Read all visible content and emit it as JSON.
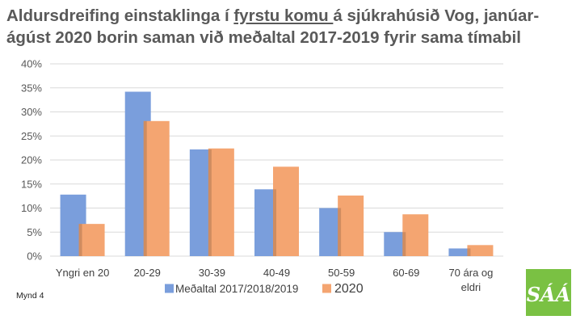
{
  "title": {
    "part1": "Aldursdreifing einstaklinga í ",
    "underlined": "fyrstu komu ",
    "part2": "á sjúkrahúsið Vog, janúar-ágúst 2020 borin saman við meðaltal 2017-2019 fyrir sama tímabil"
  },
  "figure_label": "Mynd 4",
  "logo": {
    "text": "SÁÁ",
    "color": "#7ac143"
  },
  "chart_data": {
    "type": "bar",
    "categories": [
      "Yngri en 20",
      "20-29",
      "30-39",
      "40-49",
      "50-59",
      "60-69",
      "70 ára og eldri"
    ],
    "category_lines": [
      [
        "Yngri en 20"
      ],
      [
        "20-29"
      ],
      [
        "30-39"
      ],
      [
        "40-49"
      ],
      [
        "50-59"
      ],
      [
        "60-69"
      ],
      [
        "70 ára og",
        "eldri"
      ]
    ],
    "series": [
      {
        "name": "Meðaltal 2017/2018/2019",
        "color": "#7a9edc",
        "values": [
          12.8,
          34.2,
          22.2,
          13.9,
          10.0,
          5.0,
          1.6
        ]
      },
      {
        "name": "2020",
        "color": "#f4a571",
        "values": [
          6.7,
          28.1,
          22.4,
          18.6,
          12.6,
          8.7,
          2.3
        ]
      }
    ],
    "ylim": [
      0,
      40
    ],
    "yticks": [
      "0%",
      "5%",
      "10%",
      "15%",
      "20%",
      "25%",
      "30%",
      "35%",
      "40%"
    ],
    "grid": true,
    "legend_position": "bottom"
  }
}
